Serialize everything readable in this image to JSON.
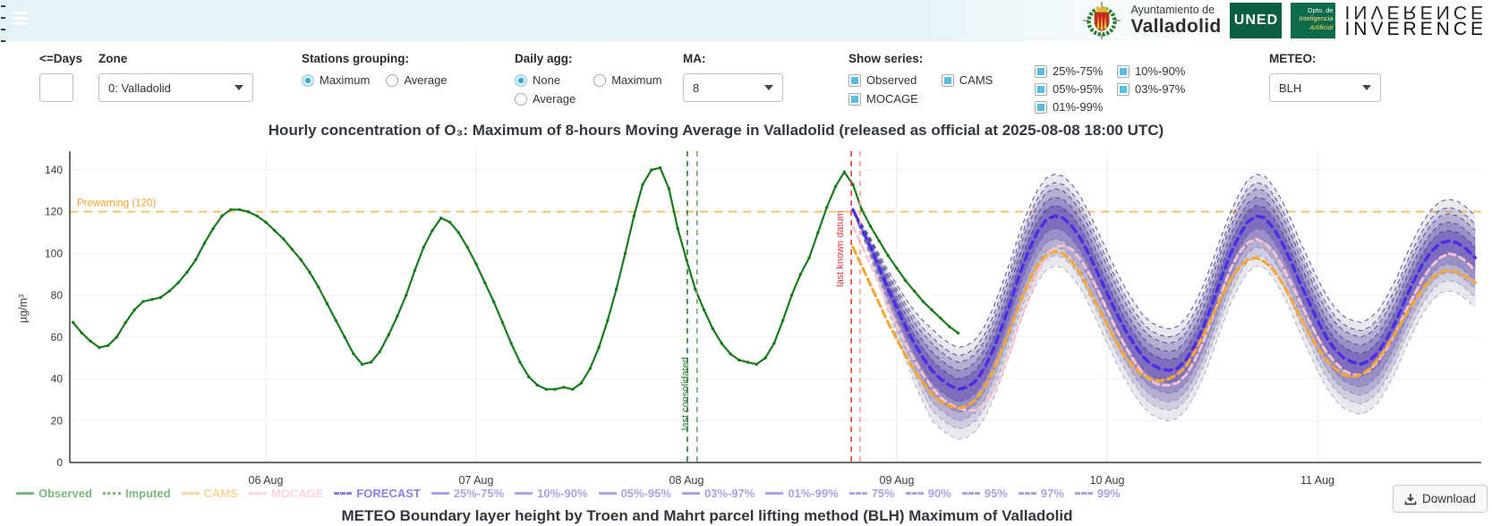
{
  "header": {
    "municipality_line1": "Ayuntamiento de",
    "municipality_line2": "Valladolid",
    "uned": "UNED",
    "dept_lines": [
      "Dpto. de",
      "Inteligencia",
      "Artificial"
    ],
    "inverence": "INVERENCE"
  },
  "controls": {
    "days": {
      "label": "<=Days",
      "value": "",
      "placeholder": ""
    },
    "zone": {
      "label": "Zone",
      "value": "0: Valladolid"
    },
    "stations_grouping": {
      "label": "Stations grouping:",
      "options": [
        "Maximum",
        "Average"
      ],
      "selected": "Maximum"
    },
    "daily_agg": {
      "label": "Daily agg:",
      "options": [
        "None",
        "Maximum",
        "Average"
      ],
      "selected": "None"
    },
    "ma": {
      "label": "MA:",
      "value": "8"
    },
    "show_series": {
      "label": "Show series:",
      "options": [
        {
          "label": "Observed",
          "checked": true
        },
        {
          "label": "CAMS",
          "checked": true
        },
        {
          "label": "MOCAGE",
          "checked": true
        }
      ]
    },
    "percentiles": {
      "options": [
        {
          "label": "25%-75%",
          "checked": true
        },
        {
          "label": "10%-90%",
          "checked": true
        },
        {
          "label": "05%-95%",
          "checked": true
        },
        {
          "label": "03%-97%",
          "checked": true
        },
        {
          "label": "01%-99%",
          "checked": true
        }
      ]
    },
    "meteo": {
      "label": "METEO:",
      "value": "BLH"
    }
  },
  "chart_data": {
    "type": "line",
    "title": "Hourly concentration of O₃: Maximum of 8-hours Moving Average in Valladolid (released as official at 2025-08-08 18:00 UTC)",
    "ylabel": "µg/m³",
    "ylim": [
      0,
      149
    ],
    "x_unit": "hours since 2025-08-05 00:00 UTC",
    "xlim": [
      1.5,
      162.8
    ],
    "grid": true,
    "x_ticks": [
      {
        "t": 24,
        "label": "06 Aug"
      },
      {
        "t": 48,
        "label": "07 Aug"
      },
      {
        "t": 72,
        "label": "08 Aug"
      },
      {
        "t": 96,
        "label": "09 Aug"
      },
      {
        "t": 120,
        "label": "10 Aug"
      },
      {
        "t": 144,
        "label": "11 Aug"
      }
    ],
    "y_ticks": [
      0,
      20,
      40,
      60,
      80,
      100,
      120,
      140
    ],
    "threshold": {
      "label": "Prewarning (120)",
      "value": 120,
      "line_color": "#f7c46b",
      "label_color": "#f0a230"
    },
    "events": [
      {
        "label": "last consolidated",
        "text_color": "#2e7d32",
        "text_t": 72.6,
        "lines": [
          {
            "t": 72.1,
            "color": "#2e7d32"
          },
          {
            "t": 73.2,
            "color": "#6aa86a"
          }
        ]
      },
      {
        "label": "last known datum",
        "text_color": "#e53935",
        "text_t": 90.3,
        "lines": [
          {
            "t": 90.8,
            "color": "#e53935"
          },
          {
            "t": 91.8,
            "color": "#f59f97"
          }
        ]
      }
    ],
    "series": [
      {
        "name": "Observed",
        "style": "solid",
        "markers": true,
        "color": "#187a1d",
        "start_t": 2,
        "values": [
          67,
          62,
          58,
          55,
          56,
          60,
          67,
          73,
          77,
          78,
          79,
          82,
          86,
          91,
          97,
          105,
          112,
          118,
          121,
          121,
          120,
          118,
          115,
          111,
          107,
          102,
          97,
          91,
          84,
          76,
          68,
          60,
          52,
          47,
          48,
          53,
          61,
          70,
          80,
          92,
          103,
          111,
          117,
          115,
          110,
          103,
          95,
          86,
          77,
          67,
          57,
          48,
          41,
          37,
          35,
          35,
          36,
          35,
          38,
          45,
          55,
          68,
          83,
          100,
          118,
          133,
          140,
          141,
          131,
          112,
          97,
          83,
          73,
          64,
          57,
          52,
          49,
          48,
          47,
          50,
          57,
          68,
          80,
          90,
          98,
          110,
          122,
          132,
          139,
          133,
          121,
          113,
          106,
          99,
          93,
          87,
          82,
          77,
          73,
          69,
          65,
          62
        ]
      },
      {
        "name": "FORECAST",
        "style": "dashed",
        "markers": false,
        "color": "#4a2ce4",
        "start_t": 91,
        "values": [
          121,
          112,
          103,
          93,
          83,
          74,
          65,
          57,
          50,
          44,
          40,
          37,
          35,
          36,
          39,
          45,
          54,
          65,
          77,
          90,
          101,
          110,
          116,
          118,
          117,
          113,
          107,
          99,
          90,
          81,
          72,
          64,
          57,
          51,
          47,
          45,
          44,
          45,
          49,
          56,
          65,
          76,
          88,
          99,
          108,
          115,
          118,
          117,
          112,
          105,
          96,
          86,
          77,
          68,
          60,
          54,
          50,
          48,
          47,
          49,
          53,
          60,
          68,
          78,
          87,
          95,
          101,
          105,
          106,
          105,
          102,
          98
        ]
      },
      {
        "name": "CAMS",
        "style": "dashed",
        "markers": false,
        "color": "#f5a733",
        "start_t": 91,
        "values": [
          103,
          94,
          85,
          76,
          67,
          59,
          51,
          44,
          38,
          33,
          29,
          27,
          26,
          27,
          30,
          36,
          44,
          54,
          65,
          76,
          86,
          94,
          99,
          101,
          100,
          96,
          90,
          82,
          74,
          66,
          58,
          51,
          46,
          42,
          40,
          39,
          40,
          42,
          46,
          53,
          61,
          70,
          79,
          87,
          93,
          97,
          98,
          96,
          92,
          86,
          78,
          70,
          62,
          55,
          49,
          45,
          42,
          41,
          42,
          45,
          50,
          56,
          63,
          70,
          77,
          83,
          88,
          91,
          92,
          91,
          89,
          86
        ]
      },
      {
        "name": "MOCAGE",
        "style": "dashed",
        "markers": false,
        "color": "#f8c6d2",
        "start_t": 91,
        "values": [
          113,
          104,
          95,
          85,
          75,
          66,
          57,
          49,
          42,
          36,
          31,
          28,
          26,
          25,
          25,
          28,
          34,
          43,
          54,
          67,
          79,
          90,
          98,
          103,
          104,
          102,
          97,
          90,
          82,
          73,
          64,
          56,
          49,
          43,
          39,
          37,
          37,
          38,
          42,
          49,
          58,
          69,
          81,
          92,
          100,
          105,
          107,
          105,
          101,
          94,
          86,
          77,
          68,
          60,
          53,
          48,
          44,
          42,
          42,
          44,
          49,
          55,
          63,
          72,
          80,
          88,
          94,
          98,
          100,
          99,
          96,
          92
        ]
      }
    ],
    "bands_note": "percentile fan around FORECAST median; offsets estimated from pixels, taper = min(1,(t-91)/9)",
    "bands": [
      {
        "name": "25%-75%",
        "upper_offset": 5,
        "lower_offset": 6,
        "fill": "rgba(86,61,178,0.40)"
      },
      {
        "name": "10%-90%",
        "upper_offset": 9,
        "lower_offset": 11,
        "fill": "rgba(92,70,175,0.30)"
      },
      {
        "name": "05%-95%",
        "upper_offset": 13,
        "lower_offset": 15,
        "fill": "rgba(99,80,172,0.24)"
      },
      {
        "name": "03%-97%",
        "upper_offset": 16,
        "lower_offset": 19,
        "fill": "rgba(112,98,170,0.20)"
      },
      {
        "name": "01%-99%",
        "upper_offset": 20,
        "lower_offset": 24,
        "fill": "rgba(135,130,155,0.18)"
      }
    ],
    "percentile_lines": [
      "75%",
      "90%",
      "95%",
      "97%",
      "99%"
    ],
    "legend_position": "bottom"
  },
  "legend": {
    "items": [
      {
        "label": "Observed",
        "color": "#7cb87c",
        "glyph": "solid"
      },
      {
        "label": "Imputed",
        "color": "#7cb87c",
        "glyph": "dotted"
      },
      {
        "label": "CAMS",
        "color": "#f8d49a",
        "glyph": "dashed"
      },
      {
        "label": "MOCAGE",
        "color": "#fbd3dc",
        "glyph": "dashed"
      },
      {
        "label": "FORECAST",
        "color": "#8b7fe8",
        "glyph": "dashed"
      },
      {
        "label": "25%-75%",
        "color": "#a9a2e3",
        "glyph": "solid"
      },
      {
        "label": "10%-90%",
        "color": "#a9a2e3",
        "glyph": "solid"
      },
      {
        "label": "05%-95%",
        "color": "#a9a2e3",
        "glyph": "solid"
      },
      {
        "label": "03%-97%",
        "color": "#a9a2e3",
        "glyph": "solid"
      },
      {
        "label": "01%-99%",
        "color": "#a9a2e3",
        "glyph": "solid"
      },
      {
        "label": "75%",
        "color": "#a9a2e3",
        "glyph": "dashed"
      },
      {
        "label": "90%",
        "color": "#a9a2e3",
        "glyph": "dashed"
      },
      {
        "label": "95%",
        "color": "#a9a2e3",
        "glyph": "dashed"
      },
      {
        "label": "97%",
        "color": "#a9a2e3",
        "glyph": "dashed"
      },
      {
        "label": "99%",
        "color": "#a9a2e3",
        "glyph": "dashed"
      }
    ]
  },
  "download_label": "Download",
  "bottom_title": "METEO Boundary layer height by Troen and Mahrt parcel lifting method (BLH) Maximum of Valladolid"
}
